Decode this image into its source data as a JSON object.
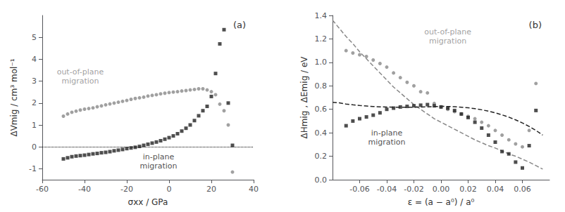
{
  "chart_data": [
    {
      "type": "scatter",
      "title": "(a)",
      "xlabel": "σxx / GPa",
      "ylabel": "ΔVmig / cm³ mol⁻¹",
      "xlim": [
        -60,
        40
      ],
      "ylim": [
        -1.5,
        6.0
      ],
      "xticks": [
        -60,
        -40,
        -20,
        0,
        20,
        40
      ],
      "yticks": [
        -1,
        0,
        1,
        2,
        3,
        4,
        5
      ],
      "grid": false,
      "series": [
        {
          "type": "scatter",
          "marker": "circle",
          "color": "#888888",
          "x": [
            -50,
            -48,
            -46,
            -44,
            -42,
            -40,
            -38,
            -36,
            -34,
            -32,
            -30,
            -28,
            -26,
            -24,
            -22,
            -20,
            -18,
            -16,
            -14,
            -12,
            -10,
            -8,
            -6,
            -4,
            -2,
            0,
            2,
            4,
            6,
            8,
            10,
            12,
            14,
            16,
            18,
            20,
            22,
            24,
            26,
            28,
            30
          ],
          "values": [
            1.4,
            1.5,
            1.58,
            1.63,
            1.68,
            1.72,
            1.75,
            1.78,
            1.83,
            1.87,
            1.92,
            1.96,
            2.0,
            2.04,
            2.08,
            2.12,
            2.17,
            2.21,
            2.24,
            2.27,
            2.32,
            2.35,
            2.38,
            2.42,
            2.45,
            2.48,
            2.5,
            2.52,
            2.55,
            2.57,
            2.6,
            2.62,
            2.65,
            2.65,
            2.6,
            2.52,
            2.38,
            1.95,
            1.65,
            1.0,
            -1.15
          ]
        },
        {
          "type": "scatter",
          "marker": "square",
          "color": "#222222",
          "x": [
            -50,
            -48,
            -46,
            -44,
            -42,
            -40,
            -38,
            -36,
            -34,
            -32,
            -30,
            -28,
            -26,
            -24,
            -22,
            -20,
            -18,
            -16,
            -14,
            -12,
            -10,
            -8,
            -6,
            -4,
            -2,
            0,
            2,
            4,
            6,
            8,
            10,
            12,
            14,
            16,
            18,
            20,
            22,
            24,
            26,
            28,
            30
          ],
          "values": [
            -0.55,
            -0.5,
            -0.45,
            -0.42,
            -0.4,
            -0.38,
            -0.35,
            -0.32,
            -0.3,
            -0.27,
            -0.25,
            -0.22,
            -0.18,
            -0.15,
            -0.12,
            -0.08,
            -0.05,
            -0.02,
            0.02,
            0.07,
            0.12,
            0.17,
            0.22,
            0.28,
            0.35,
            0.42,
            0.5,
            0.6,
            0.72,
            0.85,
            1.0,
            1.2,
            1.42,
            1.65,
            1.85,
            2.3,
            3.35,
            4.7,
            5.35,
            2.0,
            0.07
          ]
        }
      ],
      "reference_lines": [
        {
          "y": 0,
          "color": "#000000",
          "line_style": "dotted"
        }
      ],
      "annotations": [
        {
          "text": "out-of-plane\nmigration",
          "x": -42,
          "y": 3.2,
          "color": "#888888"
        },
        {
          "text": "in-plane\nmigration",
          "x": -5,
          "y": -0.68,
          "color": "#222222"
        }
      ]
    },
    {
      "type": "scatter",
      "title": "(b)",
      "xlabel": "ε = (a − a⁰) / a⁰",
      "ylabel": "ΔHmig , ΔEmig / eV",
      "xlim": [
        -0.08,
        0.08
      ],
      "ylim": [
        0.0,
        1.4
      ],
      "xticks": [
        -0.06,
        -0.04,
        -0.02,
        {
          "value": 0.0,
          "label": "0.00"
        },
        0.02,
        0.04,
        0.06
      ],
      "yticks": [
        {
          "value": 0.0,
          "label": "0.0"
        },
        0.2,
        0.4,
        0.6,
        0.8,
        {
          "value": 1.0,
          "label": "1.0"
        },
        1.2,
        1.4
      ],
      "grid": false,
      "series": [
        {
          "type": "line",
          "line_style": "dashed",
          "color": "#888888",
          "x": [
            -0.08,
            -0.075,
            -0.07,
            -0.065,
            -0.06,
            -0.055,
            -0.05,
            -0.045,
            -0.04,
            -0.035,
            -0.03,
            -0.025,
            -0.02,
            -0.015,
            -0.01,
            -0.005,
            0.0,
            0.005,
            0.01,
            0.015,
            0.02,
            0.025,
            0.03,
            0.035,
            0.04,
            0.045,
            0.05,
            0.055,
            0.06,
            0.065,
            0.07,
            0.075
          ],
          "values": [
            1.36,
            1.29,
            1.22,
            1.16,
            1.09,
            1.03,
            0.97,
            0.91,
            0.85,
            0.79,
            0.74,
            0.69,
            0.64,
            0.6,
            0.56,
            0.52,
            0.49,
            0.46,
            0.43,
            0.4,
            0.37,
            0.34,
            0.315,
            0.29,
            0.27,
            0.245,
            0.22,
            0.2,
            0.175,
            0.15,
            0.12,
            0.09
          ]
        },
        {
          "type": "line",
          "line_style": "dashed",
          "color": "#222222",
          "x": [
            -0.08,
            -0.075,
            -0.07,
            -0.065,
            -0.06,
            -0.055,
            -0.05,
            -0.045,
            -0.04,
            -0.035,
            -0.03,
            -0.025,
            -0.02,
            -0.015,
            -0.01,
            -0.005,
            0.0,
            0.005,
            0.01,
            0.015,
            0.02,
            0.025,
            0.03,
            0.035,
            0.04,
            0.045,
            0.05,
            0.055,
            0.06,
            0.065,
            0.07,
            0.075
          ],
          "values": [
            0.66,
            0.655,
            0.645,
            0.638,
            0.632,
            0.628,
            0.624,
            0.621,
            0.619,
            0.618,
            0.617,
            0.617,
            0.618,
            0.619,
            0.621,
            0.623,
            0.625,
            0.624,
            0.622,
            0.618,
            0.613,
            0.606,
            0.596,
            0.584,
            0.57,
            0.553,
            0.533,
            0.51,
            0.484,
            0.454,
            0.42,
            0.38
          ]
        },
        {
          "type": "scatter",
          "marker": "circle",
          "color": "#888888",
          "x": [
            -0.07,
            -0.065,
            -0.06,
            -0.055,
            -0.05,
            -0.045,
            -0.04,
            -0.035,
            -0.03,
            -0.025,
            -0.02,
            -0.015,
            -0.01,
            -0.005,
            0.0,
            0.005,
            0.01,
            0.015,
            0.02,
            0.025,
            0.03,
            0.035,
            0.04,
            0.045,
            0.05,
            0.055,
            0.06,
            0.065,
            0.07
          ],
          "values": [
            1.1,
            1.08,
            1.065,
            1.05,
            1.02,
            0.99,
            0.96,
            0.91,
            0.87,
            0.83,
            0.8,
            0.75,
            0.74,
            0.65,
            0.62,
            0.6,
            0.58,
            0.56,
            0.54,
            0.52,
            0.49,
            0.46,
            0.42,
            0.38,
            0.34,
            0.305,
            0.28,
            0.42,
            0.82
          ]
        },
        {
          "type": "scatter",
          "marker": "square",
          "color": "#222222",
          "x": [
            -0.07,
            -0.065,
            -0.06,
            -0.055,
            -0.05,
            -0.045,
            -0.04,
            -0.035,
            -0.03,
            -0.025,
            -0.02,
            -0.015,
            -0.01,
            -0.005,
            0.0,
            0.005,
            0.01,
            0.015,
            0.02,
            0.025,
            0.03,
            0.035,
            0.04,
            0.045,
            0.05,
            0.055,
            0.06,
            0.065,
            0.07
          ],
          "values": [
            0.46,
            0.5,
            0.52,
            0.535,
            0.55,
            0.57,
            0.6,
            0.61,
            0.62,
            0.625,
            0.63,
            0.635,
            0.64,
            0.63,
            0.62,
            0.61,
            0.59,
            0.56,
            0.53,
            0.49,
            0.44,
            0.38,
            0.32,
            0.24,
            0.22,
            0.15,
            0.1,
            0.29,
            0.59
          ]
        }
      ],
      "annotations": [
        {
          "text": "out-of-plane\nmigration",
          "x": 0.005,
          "y": 1.22,
          "color": "#888888"
        },
        {
          "text": "in-plane\nmigration",
          "x": -0.04,
          "y": 0.36,
          "color": "#222222"
        }
      ]
    }
  ]
}
